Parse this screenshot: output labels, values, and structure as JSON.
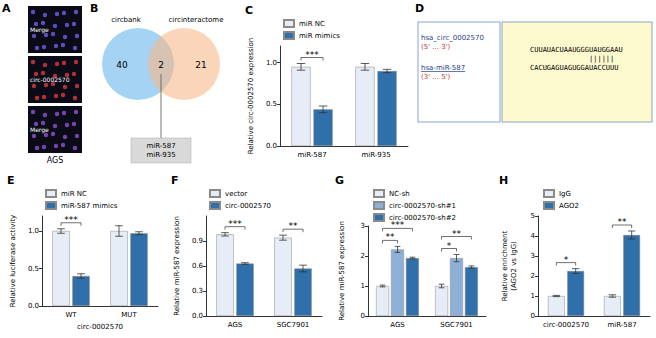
{
  "panels": {
    "A": {
      "title": "A",
      "image_labels": [
        "Merge",
        "circ-0002570",
        "Merge"
      ],
      "cell_line": "AGS"
    },
    "B": {
      "title": "B",
      "sets": [
        "circbank",
        "circinteractome"
      ],
      "only_left": 40,
      "only_right": 21,
      "overlap": 2,
      "overlap_items": [
        "miR-587",
        "miR-935"
      ]
    },
    "D": {
      "title": "D",
      "circ_name": "hsa_circ_0002570",
      "circ_orientation": "(5' ... 3')",
      "mir_name": "hsa-miR-587",
      "mir_orientation": "(3' ... 5')",
      "circ_seq": "CUUAUACUAAUGGGUAUGGAAU",
      "pairing": "              ||||||",
      "mir_seq": "CACUGAGUAGUGGAUACCUUU"
    }
  },
  "chart_data": [
    {
      "title": "C",
      "type": "bar",
      "ylabel": "Relative circ-0002570 expression",
      "categories": [
        "miR-587",
        "miR-935"
      ],
      "series": [
        {
          "name": "miR NC",
          "color": "#e6edf7",
          "values": [
            0.95,
            0.95
          ],
          "errors": [
            0.04,
            0.04
          ]
        },
        {
          "name": "miR mimics",
          "color": "#2f6faa",
          "values": [
            0.44,
            0.9
          ],
          "errors": [
            0.04,
            0.02
          ]
        }
      ],
      "ylim": [
        0,
        1.2
      ],
      "yticks": [
        {
          "value": 0,
          "label": "0.0"
        },
        {
          "value": 0.5,
          "label": "0.5"
        },
        {
          "value": 1,
          "label": "1.0"
        }
      ],
      "grid": false,
      "legend": "upper left",
      "annotations": [
        {
          "text": "***",
          "category": "miR-587",
          "pair": [
            "miR NC",
            "miR mimics"
          ]
        }
      ]
    },
    {
      "title": "E",
      "type": "bar",
      "ylabel": "Relative luciferase activity",
      "xlabel": "circ-0002570",
      "categories": [
        "WT",
        "MUT"
      ],
      "series": [
        {
          "name": "miR NC",
          "color": "#e6edf7",
          "values": [
            1.0,
            1.0
          ],
          "errors": [
            0.03,
            0.07
          ]
        },
        {
          "name": "miR-587 mimics",
          "color": "#2f6faa",
          "values": [
            0.4,
            0.97
          ],
          "errors": [
            0.03,
            0.02
          ]
        }
      ],
      "ylim": [
        0,
        1.2
      ],
      "yticks": [
        {
          "value": 0,
          "label": "0.0"
        },
        {
          "value": 0.5,
          "label": "0.5"
        },
        {
          "value": 1,
          "label": "1.0"
        }
      ],
      "grid": false,
      "legend": "upper left",
      "annotations": [
        {
          "text": "***",
          "category": "WT",
          "pair": [
            "miR NC",
            "miR-587 mimics"
          ]
        }
      ]
    },
    {
      "title": "F",
      "type": "bar",
      "ylabel": "Relative miR-587 expression",
      "categories": [
        "AGS",
        "SGC7901"
      ],
      "series": [
        {
          "name": "vector",
          "color": "#e6edf7",
          "values": [
            0.98,
            0.94
          ],
          "errors": [
            0.02,
            0.03
          ]
        },
        {
          "name": "circ-0002570",
          "color": "#2f6faa",
          "values": [
            0.63,
            0.57
          ],
          "errors": [
            0.01,
            0.04
          ]
        }
      ],
      "ylim": [
        0,
        1.2
      ],
      "yticks": [
        {
          "value": 0,
          "label": "0.0"
        },
        0.3,
        0.6,
        0.9
      ],
      "grid": false,
      "legend": "upper left",
      "annotations": [
        {
          "text": "***",
          "category": "AGS",
          "pair": [
            "vector",
            "circ-0002570"
          ]
        },
        {
          "text": "**",
          "category": "SGC7901",
          "pair": [
            "vector",
            "circ-0002570"
          ]
        }
      ]
    },
    {
      "title": "G",
      "type": "bar",
      "ylabel": "Relative miR-587 expression",
      "categories": [
        "AGS",
        "SGC7901"
      ],
      "series": [
        {
          "name": "NC-sh",
          "color": "#e6edf7",
          "values": [
            1.0,
            1.0
          ],
          "errors": [
            0.03,
            0.06
          ]
        },
        {
          "name": "circ-0002570-sh#1",
          "color": "#8fb0d6",
          "values": [
            2.22,
            1.93
          ],
          "errors": [
            0.1,
            0.12
          ]
        },
        {
          "name": "circ-0002570-sh#2",
          "color": "#2f6faa",
          "values": [
            1.93,
            1.63
          ],
          "errors": [
            0.03,
            0.04
          ]
        }
      ],
      "ylim": [
        0,
        3
      ],
      "yticks": [
        0,
        1,
        2,
        3
      ],
      "grid": false,
      "legend": "upper left",
      "annotations": [
        {
          "text": "**",
          "category": "AGS",
          "pair": [
            "NC-sh",
            "circ-0002570-sh#1"
          ]
        },
        {
          "text": "***",
          "category": "AGS",
          "pair": [
            "NC-sh",
            "circ-0002570-sh#2"
          ]
        },
        {
          "text": "*",
          "category": "SGC7901",
          "pair": [
            "NC-sh",
            "circ-0002570-sh#1"
          ]
        },
        {
          "text": "**",
          "category": "SGC7901",
          "pair": [
            "NC-sh",
            "circ-0002570-sh#2"
          ]
        }
      ]
    },
    {
      "title": "H",
      "type": "bar",
      "ylabel": "Relative enrichment\n(AGO2 vs IgG)",
      "categories": [
        "circ-0002570",
        "miR-587"
      ],
      "series": [
        {
          "name": "IgG",
          "color": "#e6edf7",
          "values": [
            1.0,
            1.0
          ],
          "errors": [
            0.03,
            0.06
          ]
        },
        {
          "name": "AGO2",
          "color": "#2f6faa",
          "values": [
            2.25,
            4.05
          ],
          "errors": [
            0.12,
            0.2
          ]
        }
      ],
      "ylim": [
        0,
        5
      ],
      "yticks": [
        0,
        1,
        2,
        3,
        4,
        5
      ],
      "grid": false,
      "legend": "upper left",
      "annotations": [
        {
          "text": "*",
          "category": "circ-0002570",
          "pair": [
            "IgG",
            "AGO2"
          ]
        },
        {
          "text": "**",
          "category": "miR-587",
          "pair": [
            "IgG",
            "AGO2"
          ]
        }
      ]
    }
  ]
}
